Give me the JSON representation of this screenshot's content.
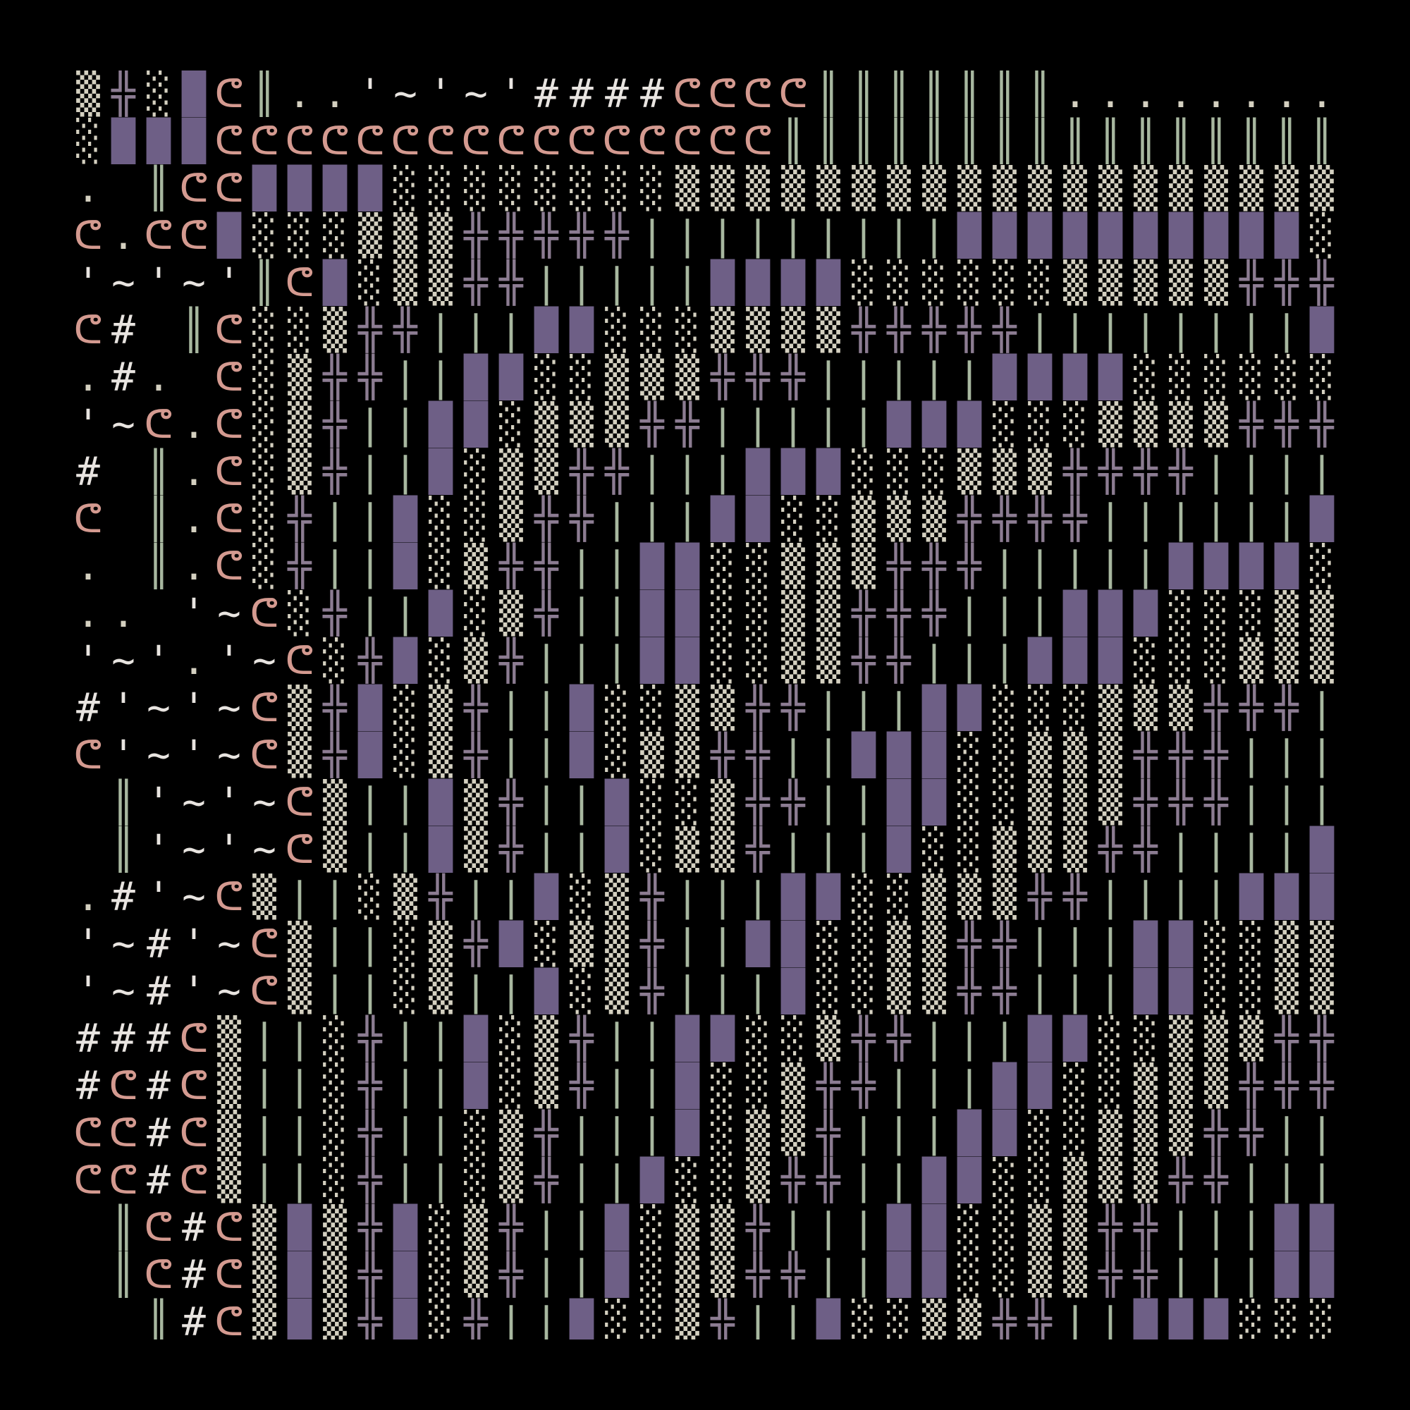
{
  "palette": {
    "background": "#000000",
    "frame": "#000000",
    "glyph_colors": {
      "░": "#d4d0c0",
      "▒": "#d4d0c0",
      "▓": "#8a7aa0",
      "█": "#6e5f86",
      "╬": "#8c7c92",
      "║": "#a8b8a0",
      "|": "#a8b8a0",
      "ᕦ": "#d49a90",
      "ᕤ": "#d49a90",
      "#": "#e8e4e0",
      "'": "#e8e4e0",
      "~": "#e8e4e0",
      ".": "#d4d0c0",
      "-": "#d4d0c0"
    }
  },
  "cell": {
    "cols": 36,
    "rows": 27
  },
  "rows": [
    "▒╬░█ᕦ║..'~'~'####ᕦᕦᕦᕦ║║║║║║║.........'~'~'",
    "░███ᕦᕦᕦᕦᕦᕦᕦᕦᕦᕦᕦᕦᕦᕦᕦᕦ║║║║║║║║║║║║║║║║",
    ". ║ᕦᕦ████░░░░░░░░▒▒▒▒▒▒▒▒▒▒▒▒▒▒▒▒▒▒▒",
    "ᕦ.ᕦᕦ█░░░▒▒▒╬╬╬╬╬|||||||||██████████░",
    "'~'~'║ᕦ█░▒▒╬╬|||||████░░░░░░▒▒▒▒▒╬╬╬╬╬",
    "ᕦ# ║ᕦ░░▒╬╬|||██░░░▒▒▒▒╬╬╬╬╬||||||||████",
    ".#. ᕦ░▒╬╬||██░░▒▒▒╬╬╬|||||████░░░░░░▒",
    "'~ᕦ.ᕦ░▒╬||██░▒▒▒╬╬|||||███░░░▒▒▒▒╬╬╬╬╬",
    "# ║.ᕦ░▒╬||█░▒▒╬╬|||███░░░▒▒▒╬╬╬╬|||||||█",
    "ᕦ ║.ᕦ░╬||█░░▒╬╬|||██░░▒▒▒╬╬╬╬||||||████░",
    ". ║.ᕦ░╬||█░▒╬╬||██░░▒▒▒╬╬╬|||||████░░░▒",
    ".. '~ᕦ░╬||█░▒╬||██░░▒▒╬╬╬|||███░░░▒▒▒╬╬",
    "'~'.'~ᕦ░╬█░▒╬|||██░░▒▒╬╬|||███░░░▒▒▒╬╬╬|||",
    "#'~'~ᕦ▒╬█░▒╬||█░░▒▒╬╬|||██░░░▒▒▒╬╬╬|||||█",
    "ᕦ'~'~ᕦ▒╬█░▒╬||█░▒▒╬╬||███░░▒▒▒╬╬╬||||████",
    " ║'~'~ᕦ▒||█▒╬||█░░▒╬╬||██░░▒▒▒╬╬╬|||||███░",
    " ║'~'~ᕦ▒||█▒╬||█░▒▒╬|||█░░▒▒▒╬╬||||███░░▒",
    ".#'~ᕦ▒||░▒╬||█░▒╬|||██░░▒▒▒╬╬||||███░░▒▒",
    "'~#'~ᕦ▒||░▒╬█░▒▒╬||██░░▒▒╬╬|||██░░▒▒▒╬╬╬",
    "'~#'~ᕦ▒||░▒||█░▒╬|||█░░▒▒╬╬|||██░░▒▒╬╬╬||",
    "###ᕦ▒||░╬||█░▒╬||██░░▒╬╬|||██░░▒▒▒╬╬╬||||",
    "#ᕦ#ᕦ▒||░╬||█░▒╬||█░░▒╬╬|||██░░▒▒▒╬╬╬||||█",
    "ᕦᕦ#ᕦ▒||░╬||░▒╬|||█░▒▒╬|||██░░▒▒▒╬╬|||||███",
    "ᕦᕦ#ᕦ▒||░╬||░▒╬||█░░▒╬╬||██░░▒▒▒╬╬||||███░",
    " ║ᕦ#ᕦ▒█▒╬█░▒╬||█░▒▒╬|||██░░▒▒╬╬|||███░░░",
    " ║ᕦ#ᕦ▒█▒╬█░▒╬||█░▒▒╬╬||██░░▒▒╬╬|||███░░░",
    "  ║#ᕦ▒█▒╬█░╬||█░░▒╬||█░░▒▒╬╬||███░░░▒"
  ]
}
